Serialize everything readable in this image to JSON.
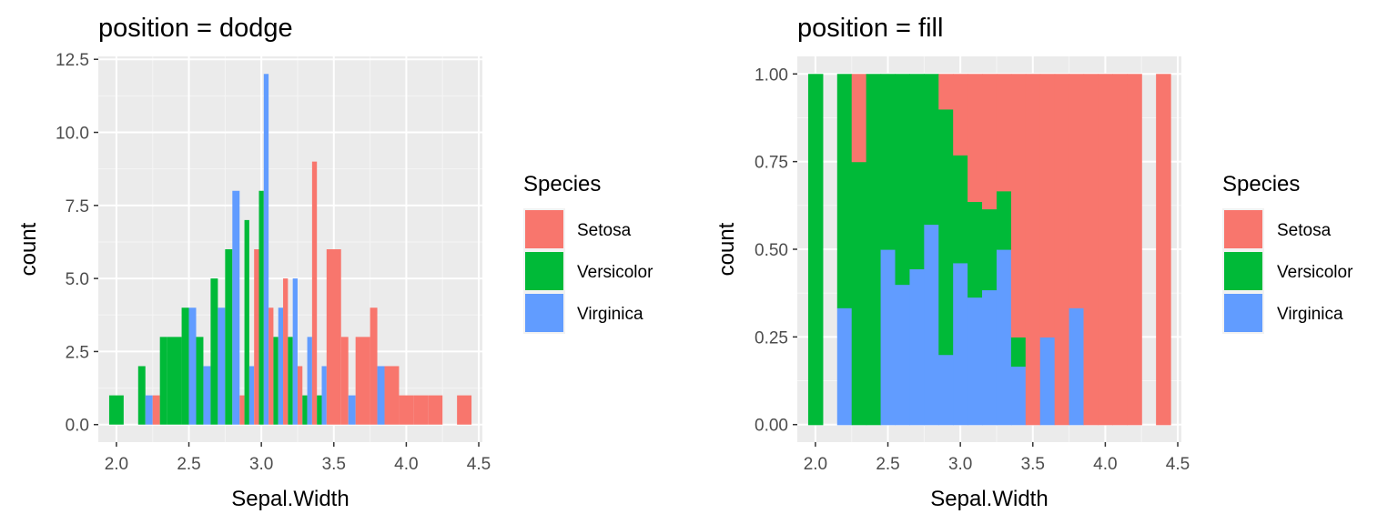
{
  "chart_data": [
    {
      "type": "bar",
      "position": "dodge",
      "title": "position = dodge",
      "xlabel": "Sepal.Width",
      "ylabel": "count",
      "xlim": [
        1.875,
        4.525
      ],
      "ylim": [
        -0.6,
        12.6
      ],
      "x_ticks": [
        2.0,
        2.5,
        3.0,
        3.5,
        4.0,
        4.5
      ],
      "x_tick_labels": [
        "2.0",
        "2.5",
        "3.0",
        "3.5",
        "4.0",
        "4.5"
      ],
      "y_ticks": [
        0,
        2.5,
        5,
        7.5,
        10,
        12.5
      ],
      "y_tick_labels": [
        "0.0",
        "2.5",
        "5.0",
        "7.5",
        "10.0",
        "12.5"
      ],
      "bin_width": 0.1,
      "legend_title": "Species",
      "series": [
        {
          "name": "Setosa",
          "color": "#F8766D",
          "bins": [
            [
              2.3,
              1
            ],
            [
              2.9,
              1
            ],
            [
              3.0,
              6
            ],
            [
              3.1,
              4
            ],
            [
              3.2,
              5
            ],
            [
              3.3,
              2
            ],
            [
              3.4,
              9
            ],
            [
              3.5,
              6
            ],
            [
              3.6,
              3
            ],
            [
              3.7,
              3
            ],
            [
              3.8,
              4
            ],
            [
              3.9,
              2
            ],
            [
              4.0,
              1
            ],
            [
              4.1,
              1
            ],
            [
              4.2,
              1
            ],
            [
              4.4,
              1
            ]
          ]
        },
        {
          "name": "Versicolor",
          "color": "#00BA38",
          "bins": [
            [
              2.0,
              1
            ],
            [
              2.2,
              2
            ],
            [
              2.3,
              3
            ],
            [
              2.4,
              3
            ],
            [
              2.5,
              4
            ],
            [
              2.6,
              3
            ],
            [
              2.7,
              5
            ],
            [
              2.8,
              6
            ],
            [
              2.9,
              7
            ],
            [
              3.0,
              8
            ],
            [
              3.1,
              3
            ],
            [
              3.2,
              3
            ],
            [
              3.3,
              1
            ],
            [
              3.4,
              1
            ]
          ]
        },
        {
          "name": "Virginica",
          "color": "#619CFF",
          "bins": [
            [
              2.2,
              1
            ],
            [
              2.5,
              4
            ],
            [
              2.6,
              2
            ],
            [
              2.7,
              4
            ],
            [
              2.8,
              8
            ],
            [
              2.9,
              2
            ],
            [
              3.0,
              12
            ],
            [
              3.1,
              4
            ],
            [
              3.2,
              5
            ],
            [
              3.3,
              3
            ],
            [
              3.4,
              2
            ],
            [
              3.6,
              1
            ],
            [
              3.8,
              2
            ]
          ]
        }
      ]
    },
    {
      "type": "bar",
      "position": "fill",
      "title": "position = fill",
      "xlabel": "Sepal.Width",
      "ylabel": "count",
      "xlim": [
        1.875,
        4.525
      ],
      "ylim": [
        -0.05,
        1.05
      ],
      "x_ticks": [
        2.0,
        2.5,
        3.0,
        3.5,
        4.0,
        4.5
      ],
      "x_tick_labels": [
        "2.0",
        "2.5",
        "3.0",
        "3.5",
        "4.0",
        "4.5"
      ],
      "y_ticks": [
        0,
        0.25,
        0.5,
        0.75,
        1.0
      ],
      "y_tick_labels": [
        "0.00",
        "0.25",
        "0.50",
        "0.75",
        "1.00"
      ],
      "bin_width": 0.1,
      "legend_title": "Species",
      "stack_order": [
        "Virginica",
        "Versicolor",
        "Setosa"
      ],
      "series": [
        {
          "name": "Setosa",
          "color": "#F8766D",
          "bins": [
            [
              2.3,
              1
            ],
            [
              2.9,
              1
            ],
            [
              3.0,
              6
            ],
            [
              3.1,
              4
            ],
            [
              3.2,
              5
            ],
            [
              3.3,
              2
            ],
            [
              3.4,
              9
            ],
            [
              3.5,
              6
            ],
            [
              3.6,
              3
            ],
            [
              3.7,
              3
            ],
            [
              3.8,
              4
            ],
            [
              3.9,
              2
            ],
            [
              4.0,
              1
            ],
            [
              4.1,
              1
            ],
            [
              4.2,
              1
            ],
            [
              4.4,
              1
            ]
          ]
        },
        {
          "name": "Versicolor",
          "color": "#00BA38",
          "bins": [
            [
              2.0,
              1
            ],
            [
              2.2,
              2
            ],
            [
              2.3,
              3
            ],
            [
              2.4,
              3
            ],
            [
              2.5,
              4
            ],
            [
              2.6,
              3
            ],
            [
              2.7,
              5
            ],
            [
              2.8,
              6
            ],
            [
              2.9,
              7
            ],
            [
              3.0,
              8
            ],
            [
              3.1,
              3
            ],
            [
              3.2,
              3
            ],
            [
              3.3,
              1
            ],
            [
              3.4,
              1
            ]
          ]
        },
        {
          "name": "Virginica",
          "color": "#619CFF",
          "bins": [
            [
              2.2,
              1
            ],
            [
              2.5,
              4
            ],
            [
              2.6,
              2
            ],
            [
              2.7,
              4
            ],
            [
              2.8,
              8
            ],
            [
              2.9,
              2
            ],
            [
              3.0,
              12
            ],
            [
              3.1,
              4
            ],
            [
              3.2,
              5
            ],
            [
              3.3,
              3
            ],
            [
              3.4,
              2
            ],
            [
              3.6,
              1
            ],
            [
              3.8,
              2
            ]
          ]
        }
      ]
    }
  ],
  "legend": {
    "title": "Species",
    "items": [
      {
        "label": "Setosa",
        "color": "#F8766D"
      },
      {
        "label": "Versicolor",
        "color": "#00BA38"
      },
      {
        "label": "Virginica",
        "color": "#619CFF"
      }
    ]
  },
  "theme": {
    "panel_bg": "#EBEBEB",
    "grid_major": "#FFFFFF",
    "grid_minor": "#F5F5F5",
    "tick_color": "#333333"
  }
}
